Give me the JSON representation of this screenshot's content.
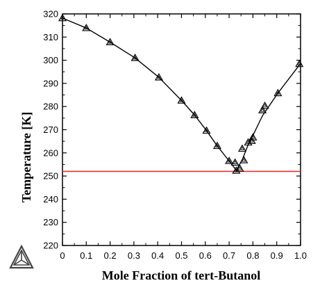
{
  "chart_data": {
    "type": "scatter",
    "xlabel": "Mole Fraction of tert-Butanol",
    "ylabel": "Temperature  [K]",
    "xlim": [
      0,
      1.0
    ],
    "ylim": [
      220,
      320
    ],
    "x_ticks": [
      "0",
      "0.1",
      "0.2",
      "0.3",
      "0.4",
      "0.5",
      "0.6",
      "0.7",
      "0.8",
      "0.9",
      "1.0"
    ],
    "y_ticks": [
      "220",
      "230",
      "240",
      "250",
      "260",
      "270",
      "280",
      "290",
      "300",
      "310",
      "320"
    ],
    "grid": false,
    "series": [
      {
        "marker": "triangle",
        "points": [
          [
            0.0,
            318.2
          ],
          [
            0.1,
            313.9
          ],
          [
            0.2,
            307.8
          ],
          [
            0.305,
            301.0
          ],
          [
            0.405,
            292.6
          ],
          [
            0.5,
            282.6
          ],
          [
            0.555,
            276.3
          ],
          [
            0.605,
            269.6
          ],
          [
            0.65,
            263.0
          ],
          [
            0.7,
            256.5
          ],
          [
            0.725,
            255.8
          ],
          [
            0.73,
            252.3
          ],
          [
            0.745,
            253.2
          ],
          [
            0.755,
            261.8
          ],
          [
            0.762,
            256.8
          ],
          [
            0.78,
            264.5
          ],
          [
            0.795,
            265.2
          ],
          [
            0.8,
            266.7
          ],
          [
            0.84,
            278.4
          ],
          [
            0.85,
            280.3
          ],
          [
            0.905,
            285.8
          ],
          [
            0.995,
            298.4
          ]
        ]
      }
    ],
    "fit_line": [
      [
        0.0,
        318.2
      ],
      [
        0.1,
        313.9
      ],
      [
        0.2,
        307.8
      ],
      [
        0.305,
        301.0
      ],
      [
        0.405,
        292.6
      ],
      [
        0.5,
        282.6
      ],
      [
        0.555,
        276.3
      ],
      [
        0.605,
        269.6
      ],
      [
        0.65,
        263.0
      ],
      [
        0.7,
        256.5
      ],
      [
        0.73,
        252.5
      ],
      [
        0.755,
        257.0
      ],
      [
        0.78,
        263.5
      ],
      [
        0.8,
        267.5
      ],
      [
        0.84,
        276.0
      ],
      [
        0.905,
        285.8
      ],
      [
        1.0,
        298.6
      ]
    ],
    "reference_line": {
      "y": 252,
      "color": "#e8302c"
    },
    "colors": {
      "axis": "#000000",
      "marker": "#000000",
      "fit": "#000000"
    },
    "logo_icon": "phase-diagram-triangle-icon"
  }
}
